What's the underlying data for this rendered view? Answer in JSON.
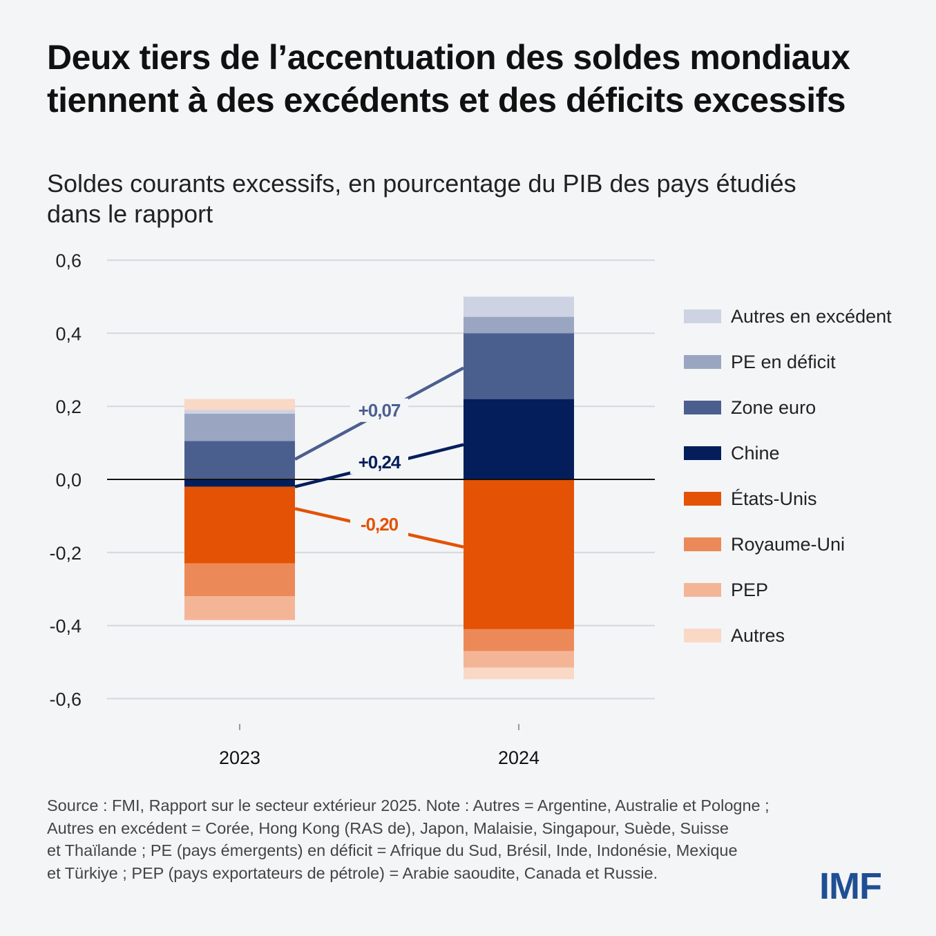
{
  "header": {
    "title": "Deux tiers de l’accentuation des soldes mondiaux\ntiennent à des excédents et des déficits excessifs",
    "subtitle": "Soldes courants excessifs, en pourcentage du PIB des pays étudiés\ndans le rapport"
  },
  "chart_data": {
    "type": "bar",
    "stacked": true,
    "categories": [
      "2023",
      "2024"
    ],
    "ylim": [
      -0.6,
      0.6
    ],
    "yticks": [
      0.6,
      0.4,
      0.2,
      0.0,
      -0.2,
      -0.4,
      -0.6
    ],
    "ytick_labels": [
      "0,6",
      "0,4",
      "0,2",
      "0,0",
      "-0,2",
      "-0,4",
      "-0,6"
    ],
    "grid": true,
    "legend_position": "right",
    "series": [
      {
        "name": "Chine",
        "color": "#041e5c",
        "values": [
          -0.02,
          0.22
        ]
      },
      {
        "name": "Zone euro",
        "color": "#4b5f8f",
        "values": [
          0.105,
          0.18
        ]
      },
      {
        "name": "PE en déficit",
        "color": "#9aa6c1",
        "values": [
          0.075,
          0.045
        ]
      },
      {
        "name": "Autres en excédent",
        "color": "#cdd3e2",
        "values": [
          0.01,
          0.055
        ]
      },
      {
        "name": "États-Unis",
        "color": "#e35205",
        "values": [
          -0.21,
          -0.41
        ]
      },
      {
        "name": "Royaume-Uni",
        "color": "#eb8a58",
        "values": [
          -0.09,
          -0.06
        ]
      },
      {
        "name": "PEP",
        "color": "#f4b597",
        "values": [
          -0.065,
          -0.045
        ]
      },
      {
        "name": "Autres",
        "color": "#f9d8c6",
        "values": [
          0.03,
          -0.032
        ]
      }
    ],
    "legend_order": [
      "Autres en excédent",
      "PE en déficit",
      "Zone euro",
      "Chine",
      "États-Unis",
      "Royaume-Uni",
      "PEP",
      "Autres"
    ],
    "annotations": [
      {
        "text": "+0,07",
        "color": "#4b5f8f",
        "from": [
          0.055,
          0
        ],
        "to": [
          0.305,
          1
        ]
      },
      {
        "text": "+0,24",
        "color": "#041e5c",
        "from": [
          -0.02,
          0
        ],
        "to": [
          0.095,
          1
        ]
      },
      {
        "text": "-0,20",
        "color": "#e35205",
        "from": [
          -0.08,
          0
        ],
        "to": [
          -0.185,
          1
        ]
      }
    ]
  },
  "footer": {
    "note": "Source : FMI, Rapport sur le secteur extérieur 2025. Note : Autres = Argentine, Australie et Pologne ;\nAutres en excédent = Corée, Hong Kong (RAS de), Japon, Malaisie, Singapour, Suède, Suisse\net Thaïlande ; PE (pays émergents) en déficit = Afrique du Sud, Brésil, Inde, Indonésie, Mexique\net Türkiye ; PEP (pays exportateurs de pétrole) = Arabie saoudite, Canada et Russie.",
    "logo": "IMF"
  }
}
